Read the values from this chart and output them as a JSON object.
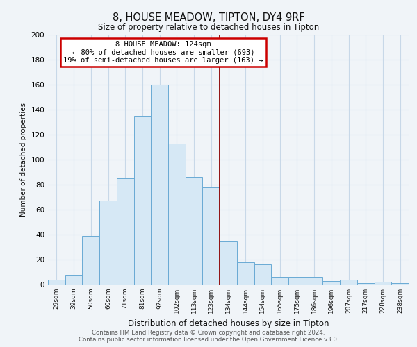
{
  "title": "8, HOUSE MEADOW, TIPTON, DY4 9RF",
  "subtitle": "Size of property relative to detached houses in Tipton",
  "xlabel": "Distribution of detached houses by size in Tipton",
  "ylabel": "Number of detached properties",
  "bin_labels": [
    "29sqm",
    "39sqm",
    "50sqm",
    "60sqm",
    "71sqm",
    "81sqm",
    "92sqm",
    "102sqm",
    "113sqm",
    "123sqm",
    "134sqm",
    "144sqm",
    "154sqm",
    "165sqm",
    "175sqm",
    "186sqm",
    "196sqm",
    "207sqm",
    "217sqm",
    "228sqm",
    "238sqm"
  ],
  "bar_heights": [
    4,
    8,
    39,
    67,
    85,
    135,
    160,
    113,
    86,
    78,
    35,
    18,
    16,
    6,
    6,
    6,
    3,
    4,
    1,
    2,
    1
  ],
  "bar_color": "#d6e8f5",
  "bar_edge_color": "#6aaad4",
  "marker_index": 9,
  "marker_color": "#8b0000",
  "annotation_title": "8 HOUSE MEADOW: 124sqm",
  "annotation_line1": "← 80% of detached houses are smaller (693)",
  "annotation_line2": "19% of semi-detached houses are larger (163) →",
  "annotation_box_color": "#ffffff",
  "annotation_box_edge": "#cc0000",
  "ylim": [
    0,
    200
  ],
  "yticks": [
    0,
    20,
    40,
    60,
    80,
    100,
    120,
    140,
    160,
    180,
    200
  ],
  "footer_line1": "Contains HM Land Registry data © Crown copyright and database right 2024.",
  "footer_line2": "Contains public sector information licensed under the Open Government Licence v3.0.",
  "background_color": "#f0f4f8",
  "grid_color": "#c8d8e8"
}
